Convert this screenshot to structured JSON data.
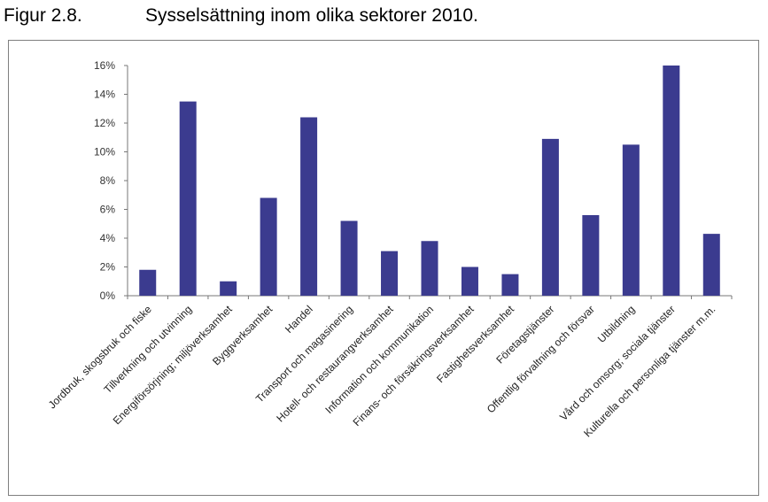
{
  "figure": {
    "number": "Figur 2.8.",
    "title": "Sysselsättning inom olika sektorer 2010."
  },
  "chart_data": {
    "type": "bar",
    "title": "Sysselsättning inom olika sektorer 2010.",
    "xlabel": "",
    "ylabel": "",
    "ylim": [
      0,
      16
    ],
    "y_tick_labels": [
      "0%",
      "2%",
      "4%",
      "6%",
      "8%",
      "10%",
      "12%",
      "14%",
      "16%"
    ],
    "y_ticks": [
      0,
      2,
      4,
      6,
      8,
      10,
      12,
      14,
      16
    ],
    "bar_color": "#3b3b8f",
    "grid": false,
    "legend": "none",
    "categories": [
      "Jordbruk, skogsbruk och fiske",
      "Tillverkning och utvinning",
      "Energiförsörjning; miljöverksamhet",
      "Byggverksamhet",
      "Handel",
      "Transport och magasinering",
      "Hotell- och restaurangverksamhet",
      "Information och kommunikation",
      "Finans- och försäkringsverksamhet",
      "Fastighetsverksamhet",
      "Företagstjänster",
      "Offentlig förvaltning och försvar",
      "Utbildning",
      "Vård och omsorg; sociala tjänster",
      "Kulturella och personliga tjänster m.m."
    ],
    "values": [
      1.8,
      13.5,
      1.0,
      6.8,
      12.4,
      5.2,
      3.1,
      3.8,
      2.0,
      1.5,
      10.9,
      5.6,
      10.5,
      16.0,
      4.3
    ]
  }
}
